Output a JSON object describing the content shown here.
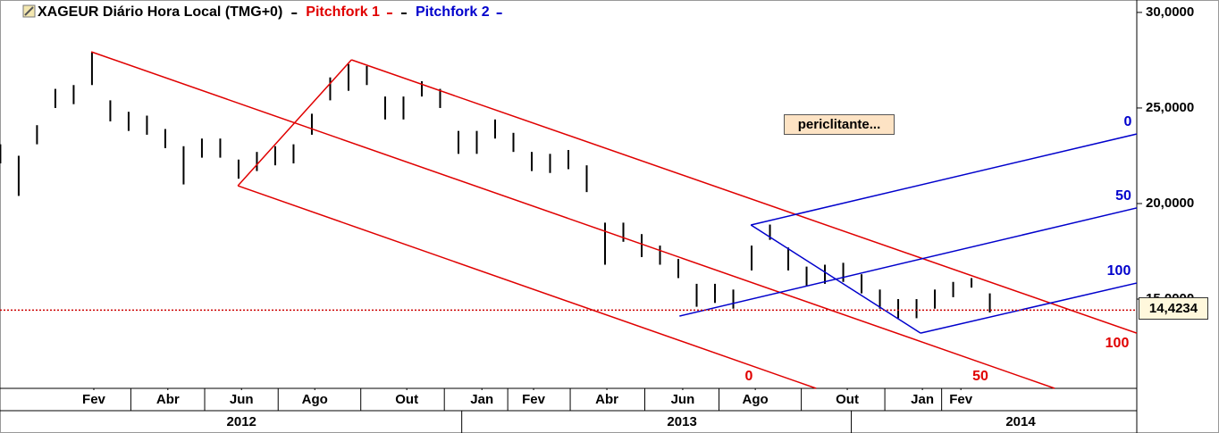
{
  "chart_data": {
    "type": "ohlc",
    "title": "XAGEUR Diário Hora Local (TMG+0)",
    "x": [
      -0.6,
      -0.1,
      0.4,
      0.9,
      1.4,
      1.9,
      2.4,
      2.9,
      3.4,
      3.9,
      4.4,
      4.9,
      5.4,
      5.9,
      6.4,
      6.9,
      7.4,
      7.9,
      8.4,
      8.9,
      9.4,
      9.9,
      10.4,
      10.9,
      11.4,
      11.9,
      12.4,
      12.9,
      13.4,
      13.9,
      14.4,
      14.9,
      15.4,
      15.9,
      16.4,
      16.9,
      17.4,
      17.9,
      18.4,
      18.9,
      19.4,
      19.9,
      20.4,
      20.9,
      21.4,
      21.9,
      22.4,
      22.9,
      23.4,
      23.9,
      24.4,
      24.9,
      25.4,
      25.9,
      26.4
    ],
    "high": [
      23.1,
      22.5,
      24.1,
      26.0,
      26.2,
      27.9,
      25.4,
      24.8,
      24.6,
      23.9,
      23.0,
      23.4,
      23.4,
      22.3,
      22.7,
      23.0,
      23.1,
      24.7,
      26.6,
      27.3,
      27.2,
      25.6,
      25.6,
      26.4,
      26.0,
      23.8,
      23.8,
      24.4,
      23.7,
      22.7,
      22.6,
      22.8,
      22.0,
      19.0,
      19.0,
      18.4,
      17.8,
      17.1,
      15.8,
      15.8,
      15.5,
      17.8,
      18.9,
      17.7,
      16.7,
      16.8,
      16.9,
      16.3,
      15.5,
      15.0,
      15.0,
      15.5,
      15.9,
      16.1,
      15.3
    ],
    "low": [
      22.1,
      20.4,
      23.1,
      25.0,
      25.2,
      26.2,
      24.3,
      23.8,
      23.6,
      22.9,
      21.0,
      22.4,
      22.4,
      21.3,
      21.7,
      22.0,
      22.1,
      23.6,
      25.4,
      25.9,
      26.2,
      24.4,
      24.4,
      25.6,
      25.0,
      22.6,
      22.6,
      23.4,
      22.7,
      21.7,
      21.6,
      21.8,
      20.6,
      16.8,
      18.0,
      17.2,
      16.8,
      16.1,
      14.6,
      14.8,
      14.5,
      16.5,
      18.1,
      16.5,
      15.7,
      15.8,
      15.9,
      15.3,
      14.5,
      14.0,
      14.0,
      14.5,
      15.1,
      15.6,
      14.3
    ],
    "color": "#000000",
    "xlim": [
      -0.61,
      30.41
    ],
    "ylim": [
      10.33,
      30.65
    ],
    "yticks": [
      {
        "value": 15,
        "label": "15,0000"
      },
      {
        "value": 20,
        "label": "20,0000"
      },
      {
        "value": 25,
        "label": "25,0000"
      },
      {
        "value": 30,
        "label": "30,0000"
      }
    ],
    "xticks": [
      {
        "value": 1.95,
        "label": "Fev"
      },
      {
        "value": 3.97,
        "label": "Abr"
      },
      {
        "value": 5.98,
        "label": "Jun"
      },
      {
        "value": 7.98,
        "label": "Ago"
      },
      {
        "value": 10.49,
        "label": "Out"
      },
      {
        "value": 12.54,
        "label": "Jan"
      },
      {
        "value": 13.95,
        "label": "Fev"
      },
      {
        "value": 15.95,
        "label": "Abr"
      },
      {
        "value": 18.02,
        "label": "Jun"
      },
      {
        "value": 20.0,
        "label": "Ago"
      },
      {
        "value": 22.51,
        "label": "Out"
      },
      {
        "value": 24.56,
        "label": "Jan"
      },
      {
        "value": 25.61,
        "label": "Fev"
      }
    ],
    "x2ticks": [
      {
        "value": 5.98,
        "label": "2012"
      },
      {
        "value": 18.0,
        "label": "2013"
      },
      {
        "value": 27.24,
        "label": "2014"
      }
    ],
    "last_price": {
      "value": 14.4234,
      "label": "14,4234",
      "color": "#cc0000"
    },
    "annotation": "periclitante...",
    "pitchforks": [
      {
        "name": "Pitchfork 1",
        "color": "#e00000",
        "levels": [
          0,
          50,
          100
        ],
        "lines": [
          {
            "x": [
              5.88,
              8.98
            ],
            "y": [
              20.93,
              27.52
            ]
          },
          {
            "x": [
              5.88,
              21.66
            ],
            "y": [
              20.93,
              10.33
            ]
          },
          {
            "x": [
              1.88,
              28.17
            ],
            "y": [
              27.94,
              10.33
            ]
          },
          {
            "x": [
              8.98,
              30.41
            ],
            "y": [
              27.52,
              13.22
            ]
          }
        ]
      },
      {
        "name": "Pitchfork 2",
        "color": "#0000cc",
        "levels": [
          0,
          50,
          100
        ],
        "lines": [
          {
            "x": [
              19.88,
              24.51
            ],
            "y": [
              18.88,
              13.22
            ]
          },
          {
            "x": [
              19.88,
              30.41
            ],
            "y": [
              18.88,
              23.64
            ]
          },
          {
            "x": [
              17.93,
              30.41
            ],
            "y": [
              14.11,
              19.77
            ]
          },
          {
            "x": [
              24.51,
              30.41
            ],
            "y": [
              13.22,
              15.84
            ]
          }
        ]
      }
    ]
  }
}
